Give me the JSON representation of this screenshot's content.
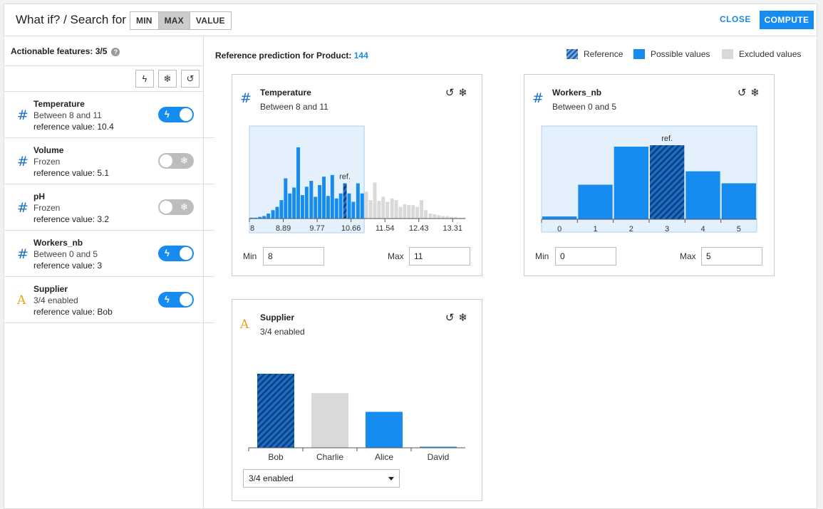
{
  "header": {
    "title": "What if? / Search for",
    "modes": [
      {
        "label": "MIN",
        "active": false
      },
      {
        "label": "MAX",
        "active": true
      },
      {
        "label": "VALUE",
        "active": false
      }
    ],
    "close_label": "CLOSE",
    "compute_label": "COMPUTE"
  },
  "sidebar": {
    "title": "Actionable features: 3/5",
    "help_icon": "?",
    "tools": [
      "lightning-icon",
      "snowflake-icon",
      "reset-icon"
    ],
    "features": [
      {
        "icon": "#",
        "icon_type": "numeric",
        "name": "Temperature",
        "sub": "Between 8 and 11",
        "ref": "reference value: 10.4",
        "enabled": true
      },
      {
        "icon": "#",
        "icon_type": "numeric",
        "name": "Volume",
        "sub": "Frozen",
        "ref": "reference value: 5.1",
        "enabled": false
      },
      {
        "icon": "#",
        "icon_type": "numeric",
        "name": "pH",
        "sub": "Frozen",
        "ref": "reference value: 3.2",
        "enabled": false
      },
      {
        "icon": "#",
        "icon_type": "numeric",
        "name": "Workers_nb",
        "sub": "Between 0 and 5",
        "ref": "reference value: 3",
        "enabled": true
      },
      {
        "icon": "A",
        "icon_type": "categorical",
        "name": "Supplier",
        "sub": "3/4 enabled",
        "ref": "reference value: Bob",
        "enabled": true
      }
    ]
  },
  "main": {
    "ref_prefix": "Reference prediction for Product:",
    "ref_value": "144",
    "legend": [
      {
        "label": "Reference",
        "color": "#1d6fc9"
      },
      {
        "label": "Possible values",
        "color": "#168cf0"
      },
      {
        "label": "Excluded values",
        "color": "#d9d9d9"
      }
    ],
    "cards": {
      "temperature": {
        "icon": "#",
        "name": "Temperature",
        "sub": "Between 8 and 11",
        "min_label": "Min",
        "min": "8",
        "max_label": "Max",
        "max": "11",
        "ref_label": "ref."
      },
      "workers": {
        "icon": "#",
        "name": "Workers_nb",
        "sub": "Between 0 and 5",
        "min_label": "Min",
        "min": "0",
        "max_label": "Max",
        "max": "5",
        "ref_label": "ref."
      },
      "supplier": {
        "icon": "A",
        "name": "Supplier",
        "sub": "3/4 enabled",
        "select_value": "3/4 enabled"
      }
    }
  },
  "chart_data": [
    {
      "type": "bar",
      "title": "Temperature",
      "x_ticks": [
        "8",
        "8.89",
        "9.77",
        "10.66",
        "11.54",
        "12.43",
        "13.31"
      ],
      "selected_range": [
        8,
        11
      ],
      "reference": 10.4,
      "bins": [
        {
          "x": 8.0,
          "v": 1
        },
        {
          "x": 8.11,
          "v": 1
        },
        {
          "x": 8.22,
          "v": 2
        },
        {
          "x": 8.33,
          "v": 3
        },
        {
          "x": 8.44,
          "v": 6
        },
        {
          "x": 8.56,
          "v": 10
        },
        {
          "x": 8.67,
          "v": 14
        },
        {
          "x": 8.78,
          "v": 22
        },
        {
          "x": 8.89,
          "v": 48
        },
        {
          "x": 9.0,
          "v": 30
        },
        {
          "x": 9.11,
          "v": 37
        },
        {
          "x": 9.22,
          "v": 85
        },
        {
          "x": 9.33,
          "v": 28
        },
        {
          "x": 9.44,
          "v": 38
        },
        {
          "x": 9.56,
          "v": 45
        },
        {
          "x": 9.67,
          "v": 26
        },
        {
          "x": 9.78,
          "v": 40
        },
        {
          "x": 9.89,
          "v": 50
        },
        {
          "x": 10.0,
          "v": 27
        },
        {
          "x": 10.11,
          "v": 52
        },
        {
          "x": 10.22,
          "v": 24
        },
        {
          "x": 10.33,
          "v": 30
        },
        {
          "x": 10.44,
          "v": 42
        },
        {
          "x": 10.55,
          "v": 30
        },
        {
          "x": 10.66,
          "v": 20
        },
        {
          "x": 10.78,
          "v": 42
        },
        {
          "x": 10.89,
          "v": 30
        },
        {
          "x": 11.0,
          "v": 32
        },
        {
          "x": 11.11,
          "v": 22
        },
        {
          "x": 11.22,
          "v": 43
        },
        {
          "x": 11.33,
          "v": 21
        },
        {
          "x": 11.44,
          "v": 26
        },
        {
          "x": 11.55,
          "v": 20
        },
        {
          "x": 11.67,
          "v": 24
        },
        {
          "x": 11.78,
          "v": 22
        },
        {
          "x": 11.89,
          "v": 14
        },
        {
          "x": 12.0,
          "v": 17
        },
        {
          "x": 12.11,
          "v": 16
        },
        {
          "x": 12.22,
          "v": 16
        },
        {
          "x": 12.33,
          "v": 14
        },
        {
          "x": 12.44,
          "v": 22
        },
        {
          "x": 12.55,
          "v": 10
        },
        {
          "x": 12.67,
          "v": 6
        },
        {
          "x": 12.78,
          "v": 5
        },
        {
          "x": 12.89,
          "v": 4
        },
        {
          "x": 13.0,
          "v": 3
        },
        {
          "x": 13.11,
          "v": 3
        },
        {
          "x": 13.22,
          "v": 2
        },
        {
          "x": 13.33,
          "v": 2
        },
        {
          "x": 13.44,
          "v": 1
        },
        {
          "x": 13.55,
          "v": 1
        }
      ]
    },
    {
      "type": "bar",
      "title": "Workers_nb",
      "categories": [
        "0",
        "1",
        "2",
        "3",
        "4",
        "5"
      ],
      "values": [
        4,
        49,
        103,
        105,
        68,
        51
      ],
      "selected_range": [
        0,
        5
      ],
      "reference": "3"
    },
    {
      "type": "bar",
      "title": "Supplier",
      "categories": [
        "Bob",
        "Charlie",
        "Alice",
        "David"
      ],
      "values": [
        103,
        76,
        50,
        1
      ],
      "status": [
        "reference",
        "excluded",
        "possible",
        "possible"
      ]
    }
  ]
}
